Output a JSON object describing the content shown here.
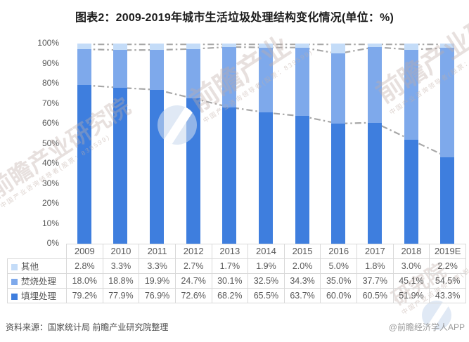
{
  "page": {
    "title": "图表2：2009-2019年城市生活垃圾处理结构变化情况(单位：%)"
  },
  "chart_data": {
    "type": "bar",
    "stacked": true,
    "title": "图表2：2009-2019年城市生活垃圾处理结构变化情况(单位：%)",
    "unit": "%",
    "categories": [
      "2009",
      "2010",
      "2011",
      "2012",
      "2013",
      "2014",
      "2015",
      "2016",
      "2017",
      "2018",
      "2019E"
    ],
    "series": [
      {
        "name": "填埋处理",
        "color": "#3E7EDE",
        "values": [
          79.2,
          77.9,
          76.9,
          72.6,
          68.2,
          65.5,
          63.7,
          60.0,
          60.5,
          51.9,
          43.3
        ]
      },
      {
        "name": "焚烧处理",
        "color": "#7EA9EB",
        "values": [
          18.0,
          18.8,
          19.9,
          24.7,
          30.1,
          32.5,
          34.3,
          35.0,
          37.7,
          45.1,
          54.5
        ]
      },
      {
        "name": "其他",
        "color": "#C4DCF8",
        "values": [
          2.8,
          3.3,
          3.3,
          2.7,
          1.7,
          1.9,
          2.0,
          5.0,
          1.8,
          3.0,
          2.2
        ]
      }
    ],
    "overlay_lines": {
      "type": "cumulative-boundaries",
      "style": "dash-dot",
      "color": "#A7A7A7"
    },
    "y_axis": {
      "min": 0,
      "max": 100,
      "step": 10,
      "suffix": "%"
    },
    "grid": false,
    "legend_position": "table-rows-left",
    "table_row_order": [
      "其他",
      "焚烧处理",
      "填埋处理"
    ]
  },
  "footer": {
    "source": "资料来源：国家统计局 前瞻产业研究院整理",
    "credit": "@前瞻经济学人APP"
  },
  "watermark": {
    "brand": "前瞻产业研究院",
    "brand_short": "前瞻产业",
    "brand_partial": "研究院",
    "tagline": "中国产业咨询领导者(股票：839599)"
  }
}
